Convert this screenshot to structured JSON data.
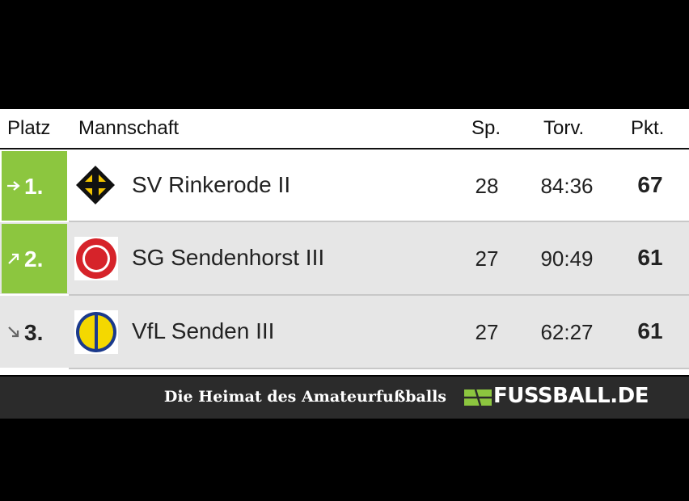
{
  "table": {
    "header": [
      "Platz",
      "Mannschaft",
      "Sp.",
      "Torv.",
      "Pkt."
    ],
    "rows": [
      [
        "1.",
        "SV Rinkerode II",
        28,
        "84:36",
        67
      ],
      [
        "2.",
        "SG Sendenhorst III",
        27,
        "90:49",
        61
      ],
      [
        "3.",
        "VfL Senden III",
        27,
        "62:27",
        61
      ]
    ]
  },
  "footer": {
    "slogan": "Die Heimat des Amateurfußballs",
    "brand": "FUSSBALL.DE"
  }
}
